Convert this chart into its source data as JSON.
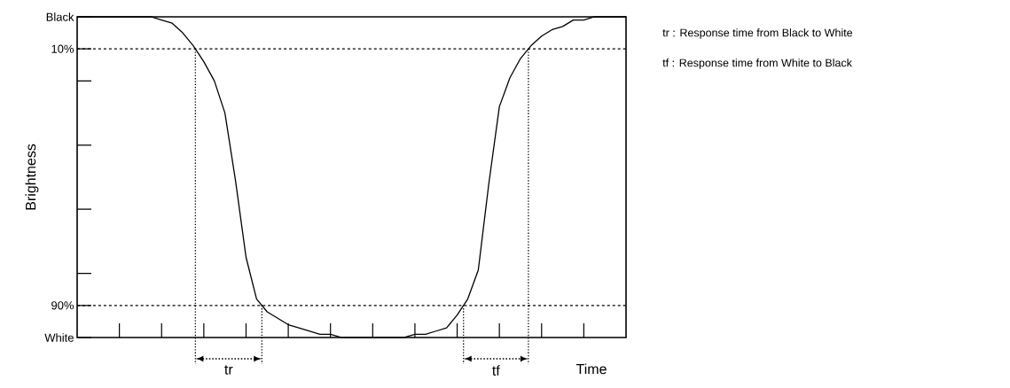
{
  "chart_data": {
    "type": "line",
    "xlabel": "Time",
    "ylabel": "Brightness",
    "categories": [
      null,
      null,
      null,
      null,
      null,
      null,
      null,
      null,
      null,
      null,
      null,
      null,
      null,
      null,
      null,
      null,
      null,
      null,
      null,
      null,
      null,
      null,
      null,
      null,
      null,
      null,
      null,
      null,
      null,
      null,
      null,
      null,
      null,
      null,
      null,
      null,
      null,
      null,
      null,
      null,
      null,
      null,
      null,
      null,
      null,
      null,
      null,
      null,
      null,
      null,
      null,
      null,
      null
    ],
    "series": [
      {
        "color": "#000000",
        "values": [
          0,
          0,
          0,
          0,
          0,
          0,
          0,
          0,
          1,
          2,
          5,
          9,
          14,
          20,
          30,
          51,
          75,
          88,
          92,
          94,
          96,
          97,
          98,
          99,
          99,
          100,
          100,
          100,
          100,
          100,
          100,
          100,
          99,
          99,
          98,
          97,
          93,
          88,
          79,
          52,
          28,
          19,
          13,
          9,
          6,
          4,
          3,
          1,
          1,
          0,
          0,
          0,
          0
        ]
      }
    ],
    "ylim": [
      100,
      0
    ],
    "yticks": [
      {
        "value": 0,
        "label": "Black"
      },
      {
        "value": 10,
        "label": "10%"
      },
      {
        "value": 20,
        "label": null
      },
      {
        "value": 40,
        "label": null
      },
      {
        "value": 60,
        "label": null
      },
      {
        "value": 80,
        "label": null
      },
      {
        "value": 90,
        "label": "90%"
      },
      {
        "value": 100,
        "label": "White"
      }
    ],
    "tick_labels": "y",
    "ref_lines": [
      {
        "axis": "y",
        "value": 10,
        "label": null,
        "line_style": "dashed"
      },
      {
        "axis": "y",
        "value": 90,
        "label": null,
        "line_style": "dashed"
      }
    ],
    "annotations": [
      "tr",
      "tf",
      "tr : Response time from Black to White",
      "tf : Response time from White to Black"
    ],
    "marker": "none",
    "line_style": "solid",
    "grid": false
  }
}
